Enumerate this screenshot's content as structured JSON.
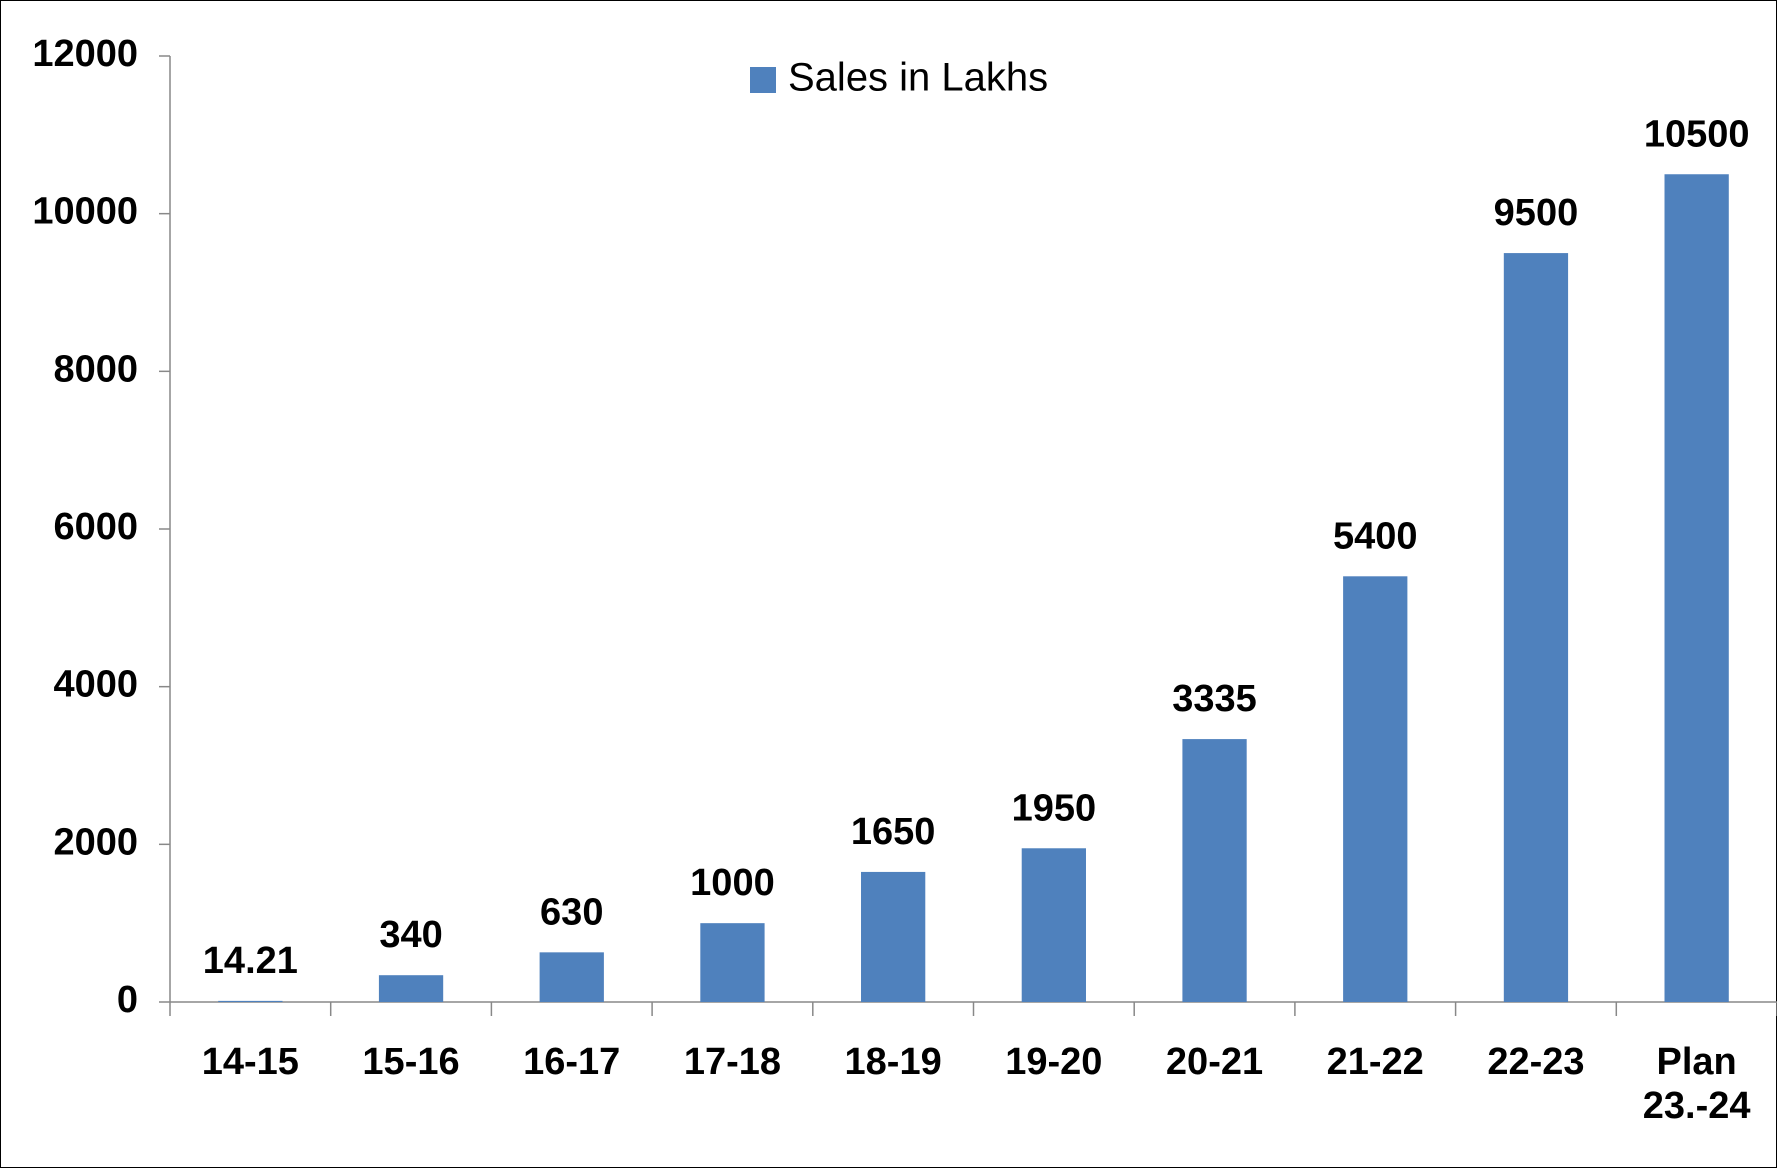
{
  "chart_data": {
    "type": "bar",
    "categories": [
      "14-15",
      "15-16",
      "16-17",
      "17-18",
      "18-19",
      "19-20",
      "20-21",
      "21-22",
      "22-23",
      "Plan 23.-24"
    ],
    "series": [
      {
        "name": "Sales in Lakhs",
        "color": "#4f81bd",
        "values": [
          14.21,
          340,
          630,
          1000,
          1650,
          1950,
          3335,
          5400,
          9500,
          10500
        ]
      }
    ],
    "ylim": [
      0,
      12000
    ],
    "yticks": [
      0,
      2000,
      4000,
      6000,
      8000,
      10000,
      12000
    ],
    "legend": "top",
    "grid": false
  }
}
